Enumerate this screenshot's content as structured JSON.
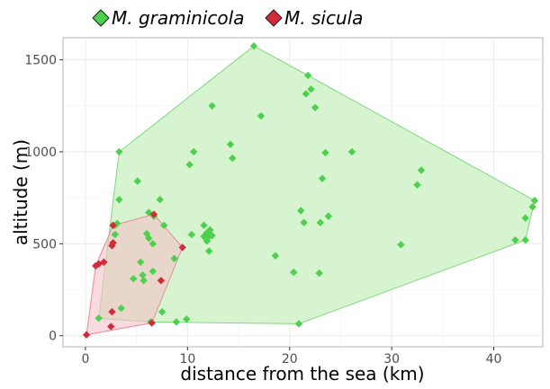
{
  "chart_data": {
    "type": "scatter",
    "title": "",
    "xlabel": "distance from the sea (km)",
    "ylabel": "altitude (m)",
    "xlim": [
      -2.2,
      44.8
    ],
    "ylim": [
      -60,
      1620
    ],
    "x_ticks": [
      0,
      10,
      20,
      30,
      40
    ],
    "y_ticks": [
      0,
      500,
      1000,
      1500
    ],
    "x_tick_labels": [
      "0",
      "10",
      "20",
      "30",
      "40"
    ],
    "y_tick_labels": [
      "0",
      "500",
      "1000",
      "1500"
    ],
    "grid": true,
    "legend_position": "top",
    "hulls": "convex hull polygon drawn around each series",
    "series": [
      {
        "name": "M. graminicola",
        "color": "#4dd04d",
        "hull_fill": "#c8f0c0",
        "hull_stroke": "#7fd77f",
        "marker": "diamond",
        "points": [
          [
            16.5,
            1575
          ],
          [
            21.8,
            1415
          ],
          [
            22.1,
            1340
          ],
          [
            21.6,
            1315
          ],
          [
            12.4,
            1250
          ],
          [
            22.5,
            1240
          ],
          [
            17.2,
            1195
          ],
          [
            14.2,
            1040
          ],
          [
            3.3,
            1000
          ],
          [
            10.6,
            1000
          ],
          [
            23.5,
            995
          ],
          [
            26.1,
            1000
          ],
          [
            14.4,
            965
          ],
          [
            10.2,
            930
          ],
          [
            32.9,
            900
          ],
          [
            32.5,
            820
          ],
          [
            23.2,
            855
          ],
          [
            5.1,
            840
          ],
          [
            3.3,
            740
          ],
          [
            7.3,
            740
          ],
          [
            44.0,
            735
          ],
          [
            43.8,
            700
          ],
          [
            21.1,
            680
          ],
          [
            6.2,
            670
          ],
          [
            6.7,
            650
          ],
          [
            43.1,
            640
          ],
          [
            23.8,
            650
          ],
          [
            2.9,
            600
          ],
          [
            3.1,
            610
          ],
          [
            11.6,
            600
          ],
          [
            21.4,
            615
          ],
          [
            23.0,
            615
          ],
          [
            7.7,
            600
          ],
          [
            12.2,
            575
          ],
          [
            11.9,
            560
          ],
          [
            12.1,
            540
          ],
          [
            12.4,
            545
          ],
          [
            11.6,
            540
          ],
          [
            6.0,
            555
          ],
          [
            6.2,
            530
          ],
          [
            2.9,
            550
          ],
          [
            10.4,
            550
          ],
          [
            42.1,
            520
          ],
          [
            43.1,
            520
          ],
          [
            11.9,
            515
          ],
          [
            30.9,
            495
          ],
          [
            6.6,
            500
          ],
          [
            12.1,
            460
          ],
          [
            18.6,
            435
          ],
          [
            8.7,
            420
          ],
          [
            5.4,
            400
          ],
          [
            20.4,
            345
          ],
          [
            22.9,
            340
          ],
          [
            5.6,
            330
          ],
          [
            6.6,
            350
          ],
          [
            4.7,
            310
          ],
          [
            5.7,
            300
          ],
          [
            3.5,
            150
          ],
          [
            7.5,
            130
          ],
          [
            1.3,
            95
          ],
          [
            9.9,
            90
          ],
          [
            8.9,
            75
          ],
          [
            6.4,
            75
          ],
          [
            20.9,
            65
          ]
        ]
      },
      {
        "name": "M. sicula",
        "color": "#d42b3a",
        "hull_fill": "#f5c2c8",
        "hull_stroke": "#e68a94",
        "marker": "diamond",
        "points": [
          [
            6.7,
            660
          ],
          [
            2.7,
            600
          ],
          [
            2.7,
            505
          ],
          [
            9.5,
            480
          ],
          [
            2.6,
            490
          ],
          [
            1.3,
            390
          ],
          [
            1.8,
            400
          ],
          [
            1.0,
            380
          ],
          [
            7.4,
            300
          ],
          [
            2.6,
            130
          ],
          [
            6.5,
            70
          ],
          [
            2.5,
            50
          ],
          [
            0.1,
            5
          ]
        ]
      }
    ]
  }
}
